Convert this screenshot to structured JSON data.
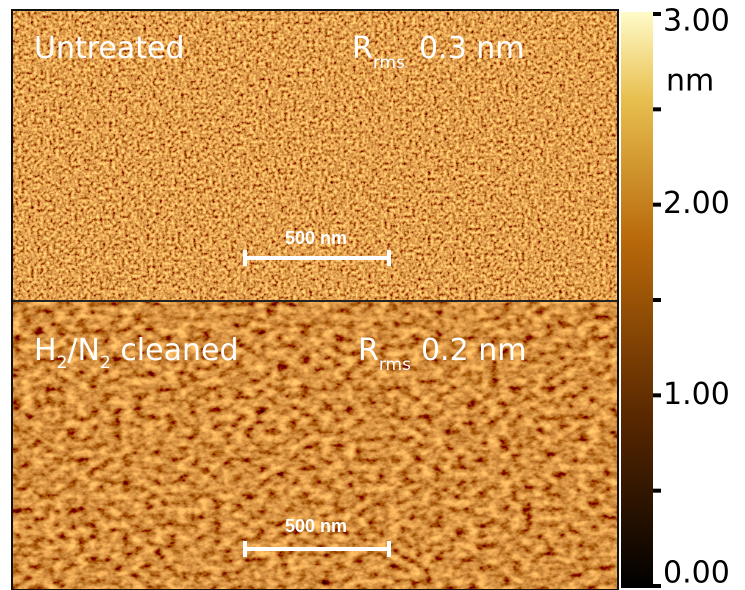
{
  "panels": [
    {
      "label": "Untreated",
      "rms_symbol": "R",
      "rms_subscript": "rms",
      "rms_value": "0.3 nm",
      "scale_bar": "500 nm"
    },
    {
      "label_parts": [
        "H",
        "2",
        "/N",
        "2",
        " cleaned"
      ],
      "rms_symbol": "R",
      "rms_subscript": "rms",
      "rms_value": "0.2 nm",
      "scale_bar": "500 nm"
    }
  ],
  "colorbar": {
    "unit": "nm",
    "range": [
      0,
      3
    ],
    "ticks": [
      {
        "value": 3,
        "label": "3.00"
      },
      {
        "value": 2,
        "label": "2.00"
      },
      {
        "value": 1,
        "label": "1.00"
      },
      {
        "value": 0,
        "label": "0.00"
      }
    ],
    "minor_ticks": [
      2.5,
      1.5,
      0.5
    ]
  }
}
